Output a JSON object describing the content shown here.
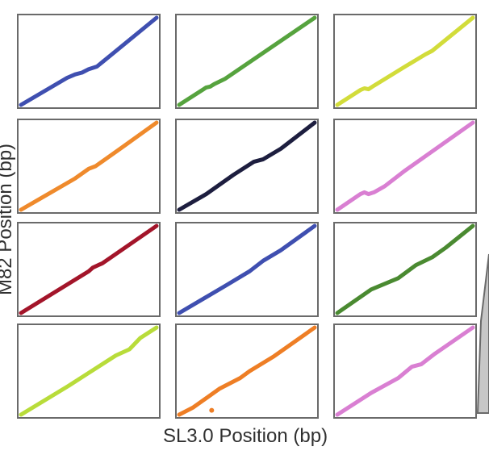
{
  "figure": {
    "xlabel": "SL3.0 Position (bp)",
    "ylabel": "M82 Position (bp)",
    "frame_color": "#6a6a6a"
  },
  "chart_data": {
    "type": "scatter",
    "layout": "grid",
    "rows": 4,
    "cols": 3,
    "shared_xlabel": "SL3.0 Position (bp)",
    "shared_ylabel": "M82 Position (bp)",
    "x_range": [
      0,
      1
    ],
    "y_range": [
      0,
      1
    ],
    "panels": [
      {
        "color": "#3f4fb0",
        "points": [
          [
            0,
            0
          ],
          [
            0.34,
            0.31
          ],
          [
            0.4,
            0.35
          ],
          [
            0.45,
            0.37
          ],
          [
            0.5,
            0.41
          ],
          [
            0.56,
            0.44
          ],
          [
            1,
            1
          ]
        ]
      },
      {
        "color": "#56a33e",
        "points": [
          [
            0,
            0
          ],
          [
            0.18,
            0.18
          ],
          [
            0.2,
            0.2
          ],
          [
            0.23,
            0.21
          ],
          [
            0.26,
            0.24
          ],
          [
            0.34,
            0.3
          ],
          [
            1,
            1
          ]
        ]
      },
      {
        "color": "#d2dc3a",
        "points": [
          [
            0,
            0
          ],
          [
            0.17,
            0.17
          ],
          [
            0.2,
            0.19
          ],
          [
            0.23,
            0.18
          ],
          [
            0.27,
            0.22
          ],
          [
            0.5,
            0.44
          ],
          [
            0.65,
            0.58
          ],
          [
            0.7,
            0.62
          ],
          [
            1,
            1
          ]
        ]
      },
      {
        "color": "#ef8a2c",
        "points": [
          [
            0,
            0
          ],
          [
            0.2,
            0.18
          ],
          [
            0.4,
            0.36
          ],
          [
            0.5,
            0.47
          ],
          [
            0.55,
            0.5
          ],
          [
            0.75,
            0.72
          ],
          [
            1,
            1
          ]
        ]
      },
      {
        "color": "#1d1e3f",
        "points": [
          [
            0,
            0
          ],
          [
            0.2,
            0.18
          ],
          [
            0.4,
            0.4
          ],
          [
            0.55,
            0.55
          ],
          [
            0.62,
            0.58
          ],
          [
            0.75,
            0.7
          ],
          [
            1,
            1
          ]
        ]
      },
      {
        "color": "#d97fd2",
        "points": [
          [
            0,
            0
          ],
          [
            0.17,
            0.18
          ],
          [
            0.2,
            0.2
          ],
          [
            0.23,
            0.18
          ],
          [
            0.27,
            0.2
          ],
          [
            0.35,
            0.27
          ],
          [
            0.5,
            0.45
          ],
          [
            1,
            1
          ]
        ]
      },
      {
        "color": "#a3152a",
        "points": [
          [
            0,
            0
          ],
          [
            0.5,
            0.48
          ],
          [
            0.53,
            0.52
          ],
          [
            0.57,
            0.55
          ],
          [
            0.6,
            0.57
          ],
          [
            1,
            1
          ]
        ]
      },
      {
        "color": "#3f4fb0",
        "points": [
          [
            0,
            0
          ],
          [
            0.35,
            0.32
          ],
          [
            0.52,
            0.48
          ],
          [
            0.62,
            0.6
          ],
          [
            0.75,
            0.72
          ],
          [
            1,
            1
          ]
        ]
      },
      {
        "color": "#4a8a31",
        "points": [
          [
            0,
            0
          ],
          [
            0.25,
            0.27
          ],
          [
            0.45,
            0.4
          ],
          [
            0.58,
            0.55
          ],
          [
            0.7,
            0.64
          ],
          [
            0.8,
            0.75
          ],
          [
            1,
            1
          ]
        ]
      },
      {
        "color": "#b8dc3a",
        "points": [
          [
            0,
            0
          ],
          [
            0.35,
            0.33
          ],
          [
            0.5,
            0.48
          ],
          [
            0.7,
            0.68
          ],
          [
            0.8,
            0.75
          ],
          [
            0.88,
            0.88
          ],
          [
            1,
            1
          ]
        ]
      },
      {
        "color": "#ee7e25",
        "points": [
          [
            0,
            0
          ],
          [
            0.1,
            0.08
          ],
          [
            0.3,
            0.3
          ],
          [
            0.45,
            0.42
          ],
          [
            0.52,
            0.5
          ],
          [
            0.7,
            0.67
          ],
          [
            1,
            1
          ]
        ],
        "outliers": [
          [
            0.24,
            0.05
          ]
        ]
      },
      {
        "color": "#d97fd2",
        "points": [
          [
            0,
            0
          ],
          [
            0.25,
            0.25
          ],
          [
            0.45,
            0.42
          ],
          [
            0.55,
            0.55
          ],
          [
            0.62,
            0.58
          ],
          [
            0.72,
            0.7
          ],
          [
            1,
            1
          ]
        ]
      }
    ]
  }
}
